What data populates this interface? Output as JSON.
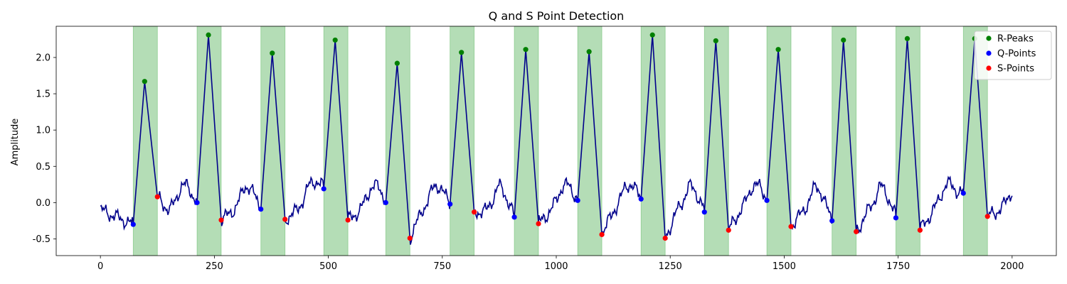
{
  "chart_data": {
    "type": "line",
    "title": "Q and S Point Detection",
    "xlabel": "",
    "ylabel": "Amplitude",
    "xlim": [
      -97,
      2097
    ],
    "ylim": [
      -0.73,
      2.43
    ],
    "xticks": [
      0,
      250,
      500,
      750,
      1000,
      1250,
      1500,
      1750,
      2000
    ],
    "yticks": [
      -0.5,
      0.0,
      0.5,
      1.0,
      1.5,
      2.0
    ],
    "ytick_labels": [
      "-0.5",
      "0.0",
      "0.5",
      "1.0",
      "1.5",
      "2.0"
    ],
    "grid": false,
    "legend_position": "top-right",
    "colors": {
      "signal": "#00008b",
      "r_peaks": "#008000",
      "q_points": "#0000ff",
      "s_points": "#ff0000",
      "qrs_band": "#4caf50"
    },
    "r_peaks": [
      [
        97,
        1.67
      ],
      [
        237,
        2.31
      ],
      [
        377,
        2.06
      ],
      [
        515,
        2.24
      ],
      [
        651,
        1.92
      ],
      [
        792,
        2.07
      ],
      [
        933,
        2.11
      ],
      [
        1072,
        2.08
      ],
      [
        1211,
        2.31
      ],
      [
        1350,
        2.23
      ],
      [
        1487,
        2.11
      ],
      [
        1630,
        2.24
      ],
      [
        1770,
        2.26
      ],
      [
        1918,
        2.26
      ]
    ],
    "q_points": [
      [
        72,
        -0.3
      ],
      [
        212,
        0.0
      ],
      [
        352,
        -0.09
      ],
      [
        490,
        0.19
      ],
      [
        626,
        0.0
      ],
      [
        767,
        -0.02
      ],
      [
        908,
        -0.2
      ],
      [
        1047,
        0.03
      ],
      [
        1186,
        0.05
      ],
      [
        1325,
        -0.13
      ],
      [
        1462,
        0.03
      ],
      [
        1605,
        -0.25
      ],
      [
        1745,
        -0.21
      ],
      [
        1893,
        0.13
      ]
    ],
    "s_points": [
      [
        125,
        0.08
      ],
      [
        265,
        -0.24
      ],
      [
        405,
        -0.23
      ],
      [
        543,
        -0.24
      ],
      [
        679,
        -0.49
      ],
      [
        820,
        -0.13
      ],
      [
        961,
        -0.29
      ],
      [
        1100,
        -0.44
      ],
      [
        1239,
        -0.49
      ],
      [
        1378,
        -0.38
      ],
      [
        1515,
        -0.33
      ],
      [
        1658,
        -0.4
      ],
      [
        1798,
        -0.38
      ],
      [
        1946,
        -0.19
      ]
    ],
    "qrs_intervals": [
      [
        72,
        125
      ],
      [
        212,
        265
      ],
      [
        352,
        405
      ],
      [
        490,
        543
      ],
      [
        626,
        679
      ],
      [
        767,
        820
      ],
      [
        908,
        961
      ],
      [
        1047,
        1100
      ],
      [
        1186,
        1239
      ],
      [
        1325,
        1378
      ],
      [
        1462,
        1515
      ],
      [
        1605,
        1658
      ],
      [
        1745,
        1798
      ],
      [
        1893,
        1946
      ]
    ],
    "legend": [
      {
        "label": "R-Peaks",
        "color": "#008000"
      },
      {
        "label": "Q-Points",
        "color": "#0000ff"
      },
      {
        "label": "S-Points",
        "color": "#ff0000"
      }
    ]
  }
}
